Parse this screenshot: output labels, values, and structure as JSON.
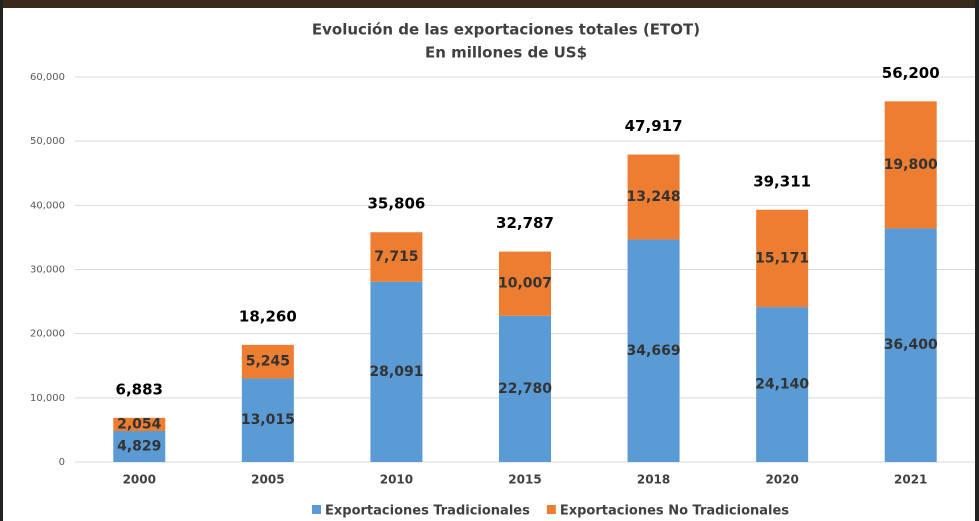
{
  "chart_data": {
    "type": "stacked_bar",
    "title": "Evolución de las exportaciones totales (ETOT)",
    "subtitle": "En millones de US$",
    "categories": [
      "2000",
      "2005",
      "2010",
      "2015",
      "2018",
      "2020",
      "2021"
    ],
    "series": [
      {
        "name": "Exportaciones Tradicionales",
        "color": "#5b9bd5",
        "values": [
          4829,
          13015,
          28091,
          22780,
          34669,
          24140,
          36400
        ],
        "value_labels": [
          "4,829",
          "13,015",
          "28,091",
          "22,780",
          "34,669",
          "24,140",
          "36,400"
        ]
      },
      {
        "name": "Exportaciones No Tradicionales",
        "color": "#ed7d31",
        "values": [
          2054,
          5245,
          7715,
          10007,
          13248,
          15171,
          19800
        ],
        "value_labels": [
          "2,054",
          "5,245",
          "7,715",
          "10,007",
          "13,248",
          "15,171",
          "19,800"
        ]
      }
    ],
    "totals": {
      "values": [
        6883,
        18260,
        35806,
        32787,
        47917,
        39311,
        56200
      ],
      "value_labels": [
        "6,883",
        "18,260",
        "35,806",
        "32,787",
        "47,917",
        "39,311",
        "56,200"
      ]
    },
    "ylim": [
      0,
      60000
    ],
    "yticks": [
      0,
      {
        "value": 10000,
        "label": "10,000"
      },
      {
        "value": 20000,
        "label": "20,000"
      },
      {
        "value": 30000,
        "label": "30,000"
      },
      {
        "value": 40000,
        "label": "40,000"
      },
      {
        "value": 50000,
        "label": "50,000"
      },
      {
        "value": 60000,
        "label": "60,000"
      }
    ],
    "grid": true
  }
}
